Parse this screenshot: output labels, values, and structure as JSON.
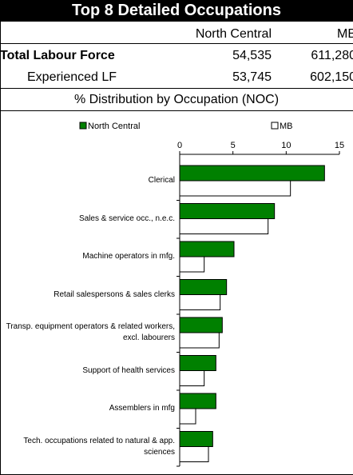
{
  "title": "Top 8 Detailed Occupations",
  "table": {
    "columns": [
      "North Central",
      "MB"
    ],
    "rows": [
      [
        "Total Labour Force",
        "54,535",
        "611,280"
      ],
      [
        "Experienced LF",
        "53,745",
        "602,150"
      ]
    ]
  },
  "subtitle": "% Distribution by Occupation (NOC)",
  "chart_data": {
    "type": "hbar",
    "categories": [
      "Clerical",
      "Sales & service occ., n.e.c.",
      "Machine operators in mfg.",
      "Retail salespersons & sales clerks",
      "Transp. equipment operators & related workers, excl. labourers",
      "Support of health services",
      "Assemblers in mfg",
      "Tech. occupations related to natural & app. sciences"
    ],
    "series": [
      {
        "name": "North Central",
        "color": "#008000",
        "values": [
          13.6,
          8.9,
          5.1,
          4.4,
          4.0,
          3.4,
          3.4,
          3.1
        ]
      },
      {
        "name": "MB",
        "color": "#ffffff",
        "values": [
          10.4,
          8.3,
          2.3,
          3.8,
          3.7,
          2.3,
          1.5,
          2.7
        ]
      }
    ],
    "xlim": [
      0,
      15
    ],
    "xticks": [
      0,
      5,
      10,
      15
    ]
  }
}
